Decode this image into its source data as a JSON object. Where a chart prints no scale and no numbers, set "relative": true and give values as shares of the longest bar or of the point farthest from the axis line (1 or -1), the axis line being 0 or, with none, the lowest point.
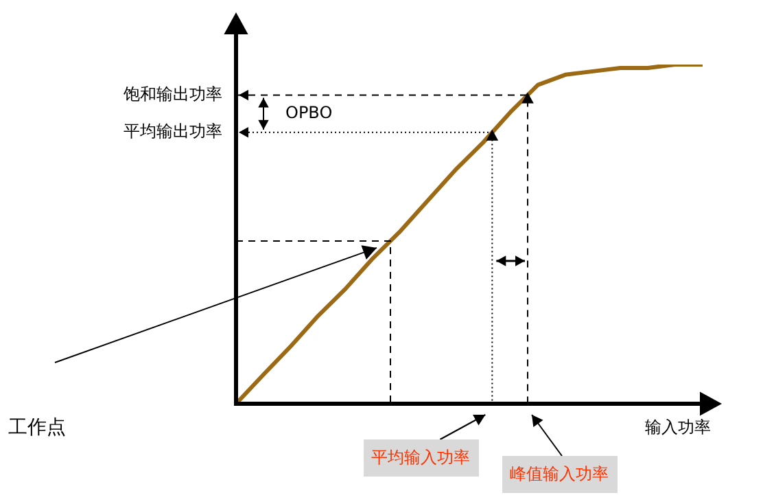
{
  "chart_data": {
    "type": "line",
    "relative": true,
    "marker": "none",
    "line_style": "solid",
    "xlabel": "输入功率",
    "categories": [
      null,
      null,
      null,
      null,
      null,
      null,
      null,
      null,
      null,
      null,
      null,
      null,
      null,
      null,
      null,
      null,
      null,
      null
    ],
    "values": [
      0,
      0.086,
      0.17,
      0.26,
      0.34,
      0.43,
      0.51,
      0.6,
      0.69,
      0.77,
      0.86,
      0.94,
      0.97,
      0.98,
      0.99,
      0.99,
      1,
      1
    ],
    "color": "#9c6a14",
    "ref_lines": [
      {
        "axis": "y",
        "value": 0.91,
        "label": "饱和输出功率",
        "line_style": "dashed"
      },
      {
        "axis": "y",
        "value": 0.8,
        "label": "平均输出功率",
        "line_style": "dotted"
      },
      {
        "axis": "y",
        "value": 0.48,
        "line_style": "dashed"
      }
    ],
    "annotations": [
      "OPBO",
      "工作点",
      "平均输入功率",
      "峰值输入功率"
    ]
  }
}
